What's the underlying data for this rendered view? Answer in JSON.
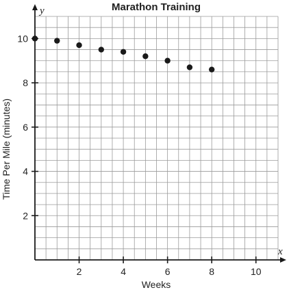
{
  "chart_data": {
    "type": "scatter",
    "title": "Marathon Training",
    "xlabel": "Weeks",
    "ylabel": "Time Per Mile (minutes)",
    "x_axis_letter": "x",
    "y_axis_letter": "y",
    "xlim": [
      0,
      11
    ],
    "ylim": [
      0,
      11
    ],
    "x_ticks": [
      2,
      4,
      6,
      8,
      10
    ],
    "y_ticks": [
      2,
      4,
      6,
      8,
      10
    ],
    "x_tick_labels": [
      "2",
      "4",
      "6",
      "8",
      "10"
    ],
    "y_tick_labels": [
      "2",
      "4",
      "6",
      "8",
      "10"
    ],
    "grid": true,
    "grid_step": 0.5,
    "marker_color": "#1a1a1a",
    "grid_color": "#9a9a9a",
    "points": [
      {
        "x": 0,
        "y": 10
      },
      {
        "x": 1,
        "y": 9.9
      },
      {
        "x": 2,
        "y": 9.7
      },
      {
        "x": 3,
        "y": 9.5
      },
      {
        "x": 4,
        "y": 9.4
      },
      {
        "x": 5,
        "y": 9.2
      },
      {
        "x": 6,
        "y": 9.0
      },
      {
        "x": 7,
        "y": 8.7
      },
      {
        "x": 8,
        "y": 8.6
      }
    ]
  }
}
